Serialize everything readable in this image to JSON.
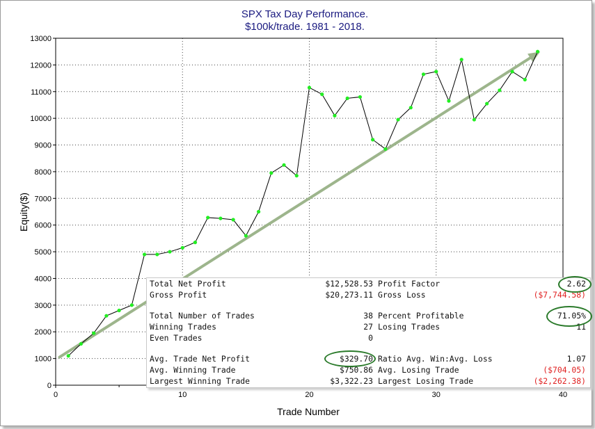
{
  "chart_data": {
    "type": "line",
    "title": "SPX Tax Day Performance.",
    "subtitle": "$100k/trade. 1981 - 2018.",
    "xlabel": "Trade Number",
    "ylabel": "Equity($)",
    "xlim": [
      0,
      40
    ],
    "ylim": [
      0,
      13000
    ],
    "x_ticks": [
      0,
      10,
      20,
      30,
      40
    ],
    "y_ticks": [
      0,
      1000,
      2000,
      3000,
      4000,
      5000,
      6000,
      7000,
      8000,
      9000,
      10000,
      11000,
      12000,
      13000
    ],
    "grid": true,
    "series": [
      {
        "color": "#000000",
        "marker_color": "#22ee22",
        "x": [
          1,
          2,
          3,
          4,
          5,
          6,
          7,
          8,
          9,
          10,
          11,
          12,
          13,
          14,
          15,
          16,
          17,
          18,
          19,
          20,
          21,
          22,
          23,
          24,
          25,
          26,
          27,
          28,
          29,
          30,
          31,
          32,
          33,
          34,
          35,
          36,
          37,
          38
        ],
        "y": [
          1100,
          1550,
          1950,
          2600,
          2800,
          3000,
          4900,
          4900,
          5000,
          5150,
          5350,
          6280,
          6250,
          6200,
          5600,
          6500,
          7950,
          8250,
          7850,
          11150,
          10900,
          10100,
          10750,
          10800,
          9200,
          8850,
          9950,
          10400,
          11650,
          11750,
          10650,
          12200,
          9950,
          10550,
          11050,
          11750,
          11450,
          12500
        ]
      }
    ],
    "annotations": [
      {
        "type": "trend-arrow",
        "color": "#9db58c",
        "from": [
          0.3,
          1050
        ],
        "to": [
          38.2,
          12500
        ]
      }
    ],
    "stats": {
      "rows": [
        {
          "l1": "Total Net Profit",
          "v1": "$12,528.53",
          "l2": "Profit Factor",
          "v2": "2.62"
        },
        {
          "l1": "Gross Profit",
          "v1": "$20,273.11",
          "l2": "Gross Loss",
          "v2": "($7,744.58)"
        },
        {
          "l1": "",
          "v1": "",
          "l2": "",
          "v2": ""
        },
        {
          "l1": "Total Number of Trades",
          "v1": "38",
          "l2": "Percent Profitable",
          "v2": "71.05%"
        },
        {
          "l1": "Winning Trades",
          "v1": "27",
          "l2": "Losing Trades",
          "v2": "11"
        },
        {
          "l1": "Even Trades",
          "v1": "0",
          "l2": "",
          "v2": ""
        },
        {
          "l1": "",
          "v1": "",
          "l2": "",
          "v2": ""
        },
        {
          "l1": "Avg. Trade Net Profit",
          "v1": "$329.70",
          "l2": "Ratio Avg. Win:Avg. Loss",
          "v2": "1.07"
        },
        {
          "l1": "Avg. Winning Trade",
          "v1": "$750.86",
          "l2": "Avg. Losing Trade",
          "v2": "($704.05)"
        },
        {
          "l1": "Largest Winning Trade",
          "v1": "$3,322.23",
          "l2": "Largest Losing Trade",
          "v2": "($2,262.38)"
        }
      ],
      "negative_color": "#e02020",
      "highlight_color": "#2a7a2a"
    }
  }
}
